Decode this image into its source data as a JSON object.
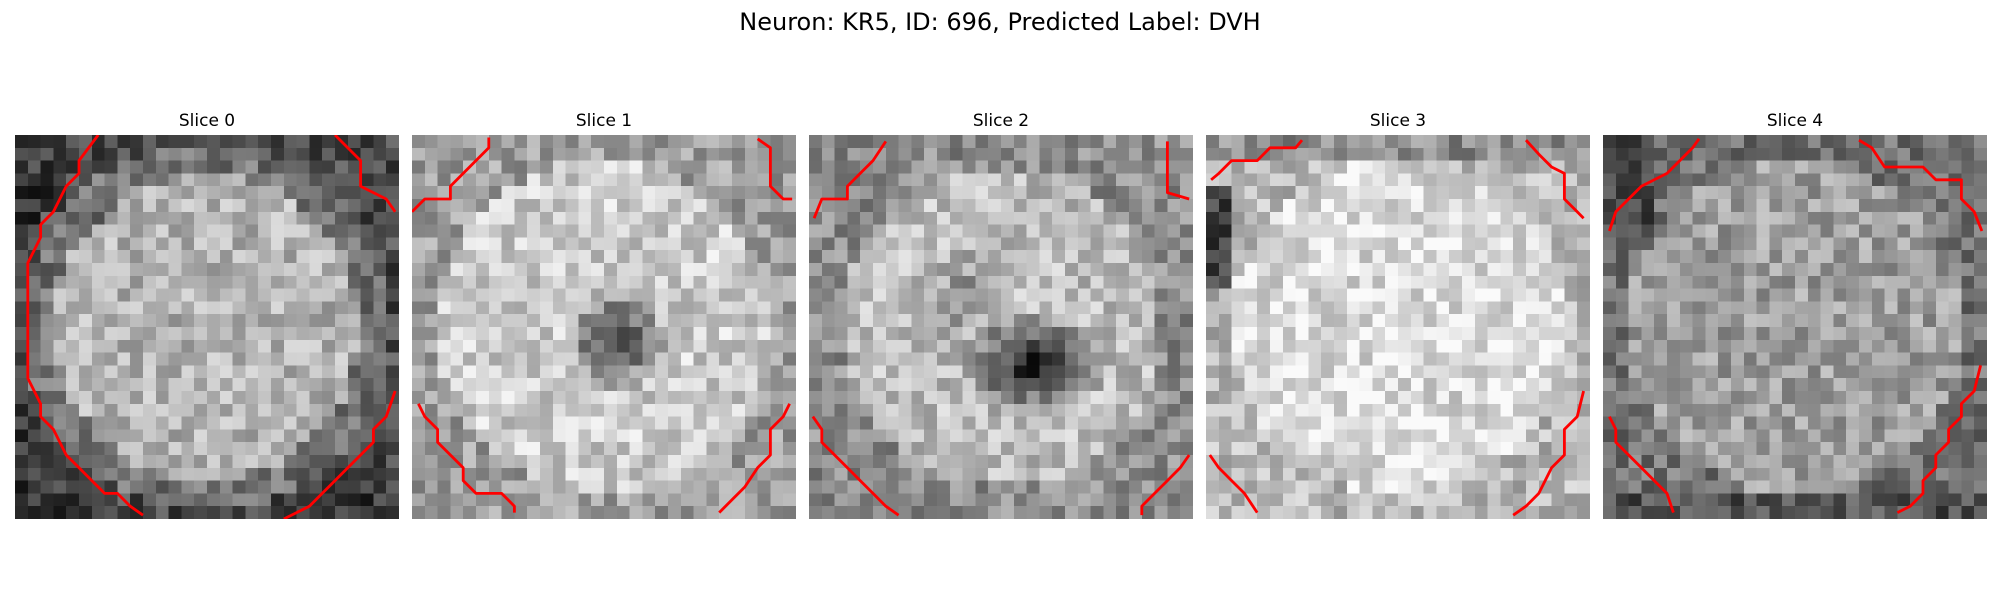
{
  "figure": {
    "title": "Neuron: KR5, ID: 696, Predicted Label: DVH"
  },
  "panels": [
    {
      "title": "Slice 0",
      "seed": 11,
      "profile": "ring",
      "contour_color": "#ff0000"
    },
    {
      "title": "Slice 1",
      "seed": 23,
      "profile": "darkspot",
      "contour_color": "#ff0000"
    },
    {
      "title": "Slice 2",
      "seed": 37,
      "profile": "darkspot2",
      "contour_color": "#ff0000"
    },
    {
      "title": "Slice 3",
      "seed": 41,
      "profile": "bright",
      "contour_color": "#ff0000"
    },
    {
      "title": "Slice 4",
      "seed": 53,
      "profile": "noisy",
      "contour_color": "#ff0000"
    }
  ]
}
